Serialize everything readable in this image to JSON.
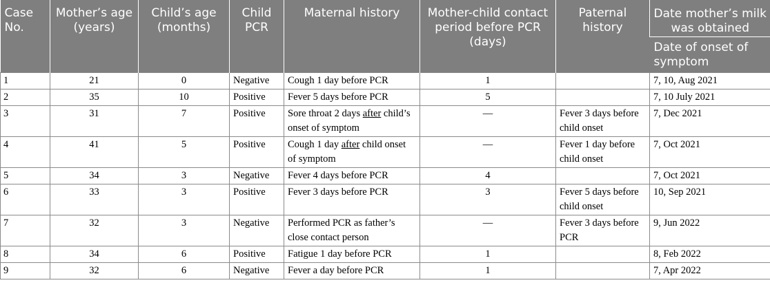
{
  "table": {
    "headers": {
      "case_no": "Case No.",
      "mother_age": "Mother’s age (years)",
      "child_age": "Child’s age (months)",
      "child_pcr": "Child PCR",
      "maternal_history": "Maternal history",
      "contact_period": "Mother-child contact period before PCR (days)",
      "paternal_history": "Paternal history",
      "milk_date": "Date mother’s milk was obtained",
      "onset_date": "Date of onset of symptom"
    },
    "rows": [
      {
        "case": "1",
        "mother_age": "21",
        "child_age": "0",
        "pcr": "Negative",
        "maternal": [
          "Cough 1 day before PCR"
        ],
        "contact": "1",
        "paternal": [],
        "date": "7, 10, Aug 2021"
      },
      {
        "case": "2",
        "mother_age": "35",
        "child_age": "10",
        "pcr": "Positive",
        "maternal": [
          "Fever 5 days before PCR"
        ],
        "contact": "5",
        "paternal": [],
        "date": "7, 10 July 2021"
      },
      {
        "case": "3",
        "mother_age": "31",
        "child_age": "7",
        "pcr": "Positive",
        "maternal": [
          "Sore throat 2 days ",
          "after",
          " child’s onset of symptom"
        ],
        "contact": "—",
        "paternal": [
          "Fever 3 days before child onset"
        ],
        "date": "7, Dec 2021"
      },
      {
        "case": "4",
        "mother_age": "41",
        "child_age": "5",
        "pcr": "Positive",
        "maternal": [
          "Cough 1 day ",
          "after",
          " child onset of symptom"
        ],
        "contact": "—",
        "paternal": [
          "Fever 1 day before child onset"
        ],
        "date": "7, Oct 2021"
      },
      {
        "case": "5",
        "mother_age": "34",
        "child_age": "3",
        "pcr": "Negative",
        "maternal": [
          "Fever 4 days before PCR"
        ],
        "contact": "4",
        "paternal": [],
        "date": "7, Oct 2021"
      },
      {
        "case": "6",
        "mother_age": "33",
        "child_age": "3",
        "pcr": "Positive",
        "maternal": [
          "Fever 3 days before PCR"
        ],
        "contact": "3",
        "paternal": [
          "Fever 5 days before child onset"
        ],
        "date": "10, Sep 2021"
      },
      {
        "case": "7",
        "mother_age": "32",
        "child_age": "3",
        "pcr": "Negative",
        "maternal": [
          "Performed PCR as father’s close contact person"
        ],
        "contact": "—",
        "paternal": [
          "Fever 3 days before PCR"
        ],
        "date": "9, Jun 2022"
      },
      {
        "case": "8",
        "mother_age": "34",
        "child_age": "6",
        "pcr": "Positive",
        "maternal": [
          "Fatigue 1 day before PCR"
        ],
        "contact": "1",
        "paternal": [],
        "date": "8, Feb 2022"
      },
      {
        "case": "9",
        "mother_age": "32",
        "child_age": "6",
        "pcr": "Negative",
        "maternal": [
          "Fever a day before PCR"
        ],
        "contact": "1",
        "paternal": [],
        "date": "7, Apr 2022"
      }
    ]
  }
}
